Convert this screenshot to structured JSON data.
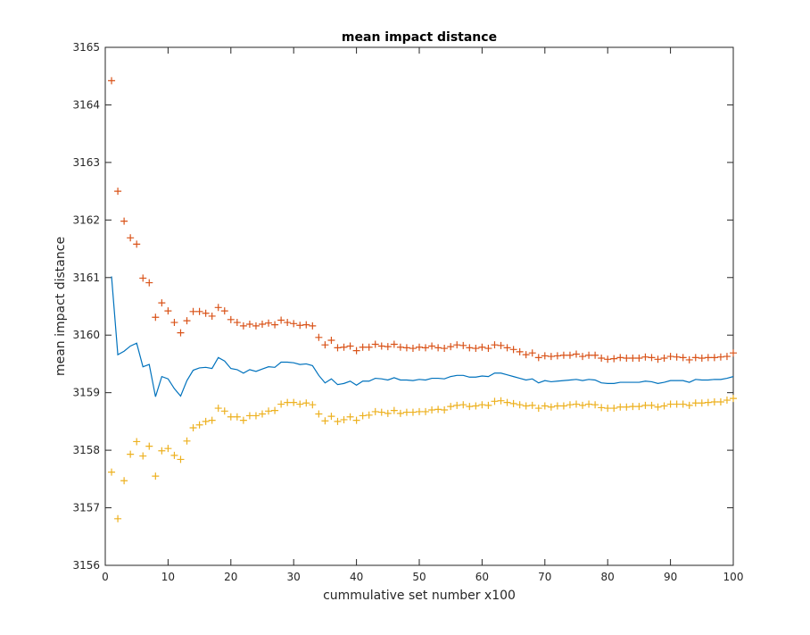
{
  "chart_data": {
    "type": "line",
    "title": "mean impact distance",
    "xlabel": "cummulative set number x100",
    "ylabel": "mean impact distance",
    "xlim": [
      0,
      100
    ],
    "ylim": [
      3156,
      3165
    ],
    "xticks": [
      0,
      10,
      20,
      30,
      40,
      50,
      60,
      70,
      80,
      90,
      100
    ],
    "yticks": [
      3156,
      3157,
      3158,
      3159,
      3160,
      3161,
      3162,
      3163,
      3164,
      3165
    ],
    "grid": false,
    "legend": "none",
    "series": [
      {
        "style": "line",
        "color": "#0072BD",
        "x": [
          1,
          2,
          3,
          4,
          5,
          6,
          7,
          8,
          9,
          10,
          11,
          12,
          13,
          14,
          15,
          16,
          17,
          18,
          19,
          20,
          21,
          22,
          23,
          24,
          25,
          26,
          27,
          28,
          29,
          30,
          31,
          32,
          33,
          34,
          35,
          36,
          37,
          38,
          39,
          40,
          41,
          42,
          43,
          44,
          45,
          46,
          47,
          48,
          49,
          50,
          51,
          52,
          53,
          54,
          55,
          56,
          57,
          58,
          59,
          60,
          61,
          62,
          63,
          64,
          65,
          66,
          67,
          68,
          69,
          70,
          71,
          72,
          73,
          74,
          75,
          76,
          77,
          78,
          79,
          80,
          81,
          82,
          83,
          84,
          85,
          86,
          87,
          88,
          89,
          90,
          91,
          92,
          93,
          94,
          95,
          96,
          97,
          98,
          99,
          100
        ],
        "values": [
          3161.02,
          3159.66,
          3159.72,
          3159.81,
          3159.86,
          3159.45,
          3159.49,
          3158.93,
          3159.28,
          3159.24,
          3159.07,
          3158.94,
          3159.21,
          3159.39,
          3159.43,
          3159.44,
          3159.42,
          3159.61,
          3159.55,
          3159.42,
          3159.4,
          3159.34,
          3159.4,
          3159.37,
          3159.41,
          3159.45,
          3159.44,
          3159.53,
          3159.53,
          3159.52,
          3159.49,
          3159.5,
          3159.47,
          3159.3,
          3159.17,
          3159.24,
          3159.14,
          3159.16,
          3159.2,
          3159.13,
          3159.2,
          3159.2,
          3159.25,
          3159.24,
          3159.22,
          3159.26,
          3159.22,
          3159.22,
          3159.21,
          3159.23,
          3159.22,
          3159.25,
          3159.25,
          3159.24,
          3159.28,
          3159.3,
          3159.3,
          3159.27,
          3159.27,
          3159.29,
          3159.28,
          3159.34,
          3159.34,
          3159.31,
          3159.28,
          3159.25,
          3159.22,
          3159.24,
          3159.17,
          3159.21,
          3159.19,
          3159.2,
          3159.21,
          3159.22,
          3159.23,
          3159.21,
          3159.23,
          3159.22,
          3159.17,
          3159.16,
          3159.16,
          3159.18,
          3159.18,
          3159.18,
          3159.18,
          3159.2,
          3159.19,
          3159.16,
          3159.18,
          3159.21,
          3159.21,
          3159.21,
          3159.18,
          3159.23,
          3159.22,
          3159.22,
          3159.23,
          3159.23,
          3159.25,
          3159.28
        ]
      },
      {
        "style": "plus-markers",
        "color": "#D95319",
        "x": [
          1,
          2,
          3,
          4,
          5,
          6,
          7,
          8,
          9,
          10,
          11,
          12,
          13,
          14,
          15,
          16,
          17,
          18,
          19,
          20,
          21,
          22,
          23,
          24,
          25,
          26,
          27,
          28,
          29,
          30,
          31,
          32,
          33,
          34,
          35,
          36,
          37,
          38,
          39,
          40,
          41,
          42,
          43,
          44,
          45,
          46,
          47,
          48,
          49,
          50,
          51,
          52,
          53,
          54,
          55,
          56,
          57,
          58,
          59,
          60,
          61,
          62,
          63,
          64,
          65,
          66,
          67,
          68,
          69,
          70,
          71,
          72,
          73,
          74,
          75,
          76,
          77,
          78,
          79,
          80,
          81,
          82,
          83,
          84,
          85,
          86,
          87,
          88,
          89,
          90,
          91,
          92,
          93,
          94,
          95,
          96,
          97,
          98,
          99,
          100
        ],
        "values": [
          3164.42,
          3162.5,
          3161.98,
          3161.69,
          3161.58,
          3160.99,
          3160.91,
          3160.31,
          3160.56,
          3160.42,
          3160.22,
          3160.04,
          3160.25,
          3160.41,
          3160.41,
          3160.38,
          3160.33,
          3160.48,
          3160.42,
          3160.27,
          3160.22,
          3160.16,
          3160.19,
          3160.16,
          3160.19,
          3160.21,
          3160.18,
          3160.26,
          3160.22,
          3160.2,
          3160.17,
          3160.18,
          3160.16,
          3159.96,
          3159.83,
          3159.91,
          3159.78,
          3159.79,
          3159.81,
          3159.73,
          3159.79,
          3159.79,
          3159.84,
          3159.81,
          3159.8,
          3159.84,
          3159.79,
          3159.78,
          3159.77,
          3159.79,
          3159.78,
          3159.81,
          3159.78,
          3159.77,
          3159.8,
          3159.83,
          3159.82,
          3159.78,
          3159.77,
          3159.79,
          3159.77,
          3159.83,
          3159.82,
          3159.78,
          3159.75,
          3159.71,
          3159.66,
          3159.69,
          3159.61,
          3159.64,
          3159.63,
          3159.64,
          3159.65,
          3159.65,
          3159.67,
          3159.63,
          3159.65,
          3159.65,
          3159.6,
          3159.58,
          3159.59,
          3159.61,
          3159.6,
          3159.6,
          3159.6,
          3159.62,
          3159.61,
          3159.58,
          3159.6,
          3159.63,
          3159.62,
          3159.61,
          3159.57,
          3159.61,
          3159.6,
          3159.61,
          3159.61,
          3159.62,
          3159.63,
          3159.69
        ]
      },
      {
        "style": "plus-markers",
        "color": "#EDB120",
        "x": [
          1,
          2,
          3,
          4,
          5,
          6,
          7,
          8,
          9,
          10,
          11,
          12,
          13,
          14,
          15,
          16,
          17,
          18,
          19,
          20,
          21,
          22,
          23,
          24,
          25,
          26,
          27,
          28,
          29,
          30,
          31,
          32,
          33,
          34,
          35,
          36,
          37,
          38,
          39,
          40,
          41,
          42,
          43,
          44,
          45,
          46,
          47,
          48,
          49,
          50,
          51,
          52,
          53,
          54,
          55,
          56,
          57,
          58,
          59,
          60,
          61,
          62,
          63,
          64,
          65,
          66,
          67,
          68,
          69,
          70,
          71,
          72,
          73,
          74,
          75,
          76,
          77,
          78,
          79,
          80,
          81,
          82,
          83,
          84,
          85,
          86,
          87,
          88,
          89,
          90,
          91,
          92,
          93,
          94,
          95,
          96,
          97,
          98,
          99,
          100
        ],
        "values": [
          3157.62,
          3156.81,
          3157.47,
          3157.93,
          3158.15,
          3157.9,
          3158.07,
          3157.55,
          3157.99,
          3158.03,
          3157.91,
          3157.84,
          3158.16,
          3158.39,
          3158.44,
          3158.5,
          3158.52,
          3158.73,
          3158.68,
          3158.58,
          3158.58,
          3158.52,
          3158.6,
          3158.6,
          3158.63,
          3158.68,
          3158.69,
          3158.8,
          3158.83,
          3158.83,
          3158.8,
          3158.82,
          3158.79,
          3158.63,
          3158.51,
          3158.59,
          3158.5,
          3158.53,
          3158.58,
          3158.52,
          3158.6,
          3158.61,
          3158.67,
          3158.66,
          3158.64,
          3158.69,
          3158.64,
          3158.66,
          3158.66,
          3158.67,
          3158.67,
          3158.7,
          3158.71,
          3158.7,
          3158.76,
          3158.78,
          3158.79,
          3158.76,
          3158.77,
          3158.79,
          3158.78,
          3158.85,
          3158.86,
          3158.83,
          3158.81,
          3158.79,
          3158.77,
          3158.78,
          3158.73,
          3158.77,
          3158.75,
          3158.77,
          3158.77,
          3158.79,
          3158.8,
          3158.78,
          3158.8,
          3158.79,
          3158.74,
          3158.73,
          3158.73,
          3158.75,
          3158.75,
          3158.76,
          3158.76,
          3158.78,
          3158.78,
          3158.75,
          3158.77,
          3158.8,
          3158.8,
          3158.8,
          3158.78,
          3158.82,
          3158.82,
          3158.83,
          3158.84,
          3158.84,
          3158.87,
          3158.9
        ]
      }
    ]
  }
}
